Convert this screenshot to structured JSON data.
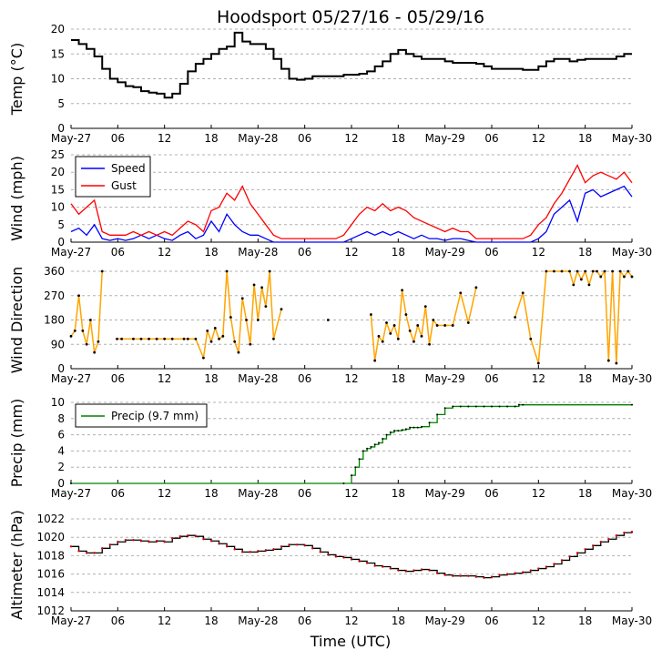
{
  "figure": {
    "title": "Hoodsport 05/27/16 - 05/29/16",
    "xlabel": "Time (UTC)"
  },
  "colors": {
    "temp": "#000000",
    "speed": "#0000ff",
    "gust": "#ff0000",
    "direction": "#ffa500",
    "precip": "#008000",
    "altimeter": "#000000",
    "altimeter_marker": "#cc0000",
    "grid": "#b0b0b0"
  },
  "chart_data": [
    {
      "type": "line",
      "id": "temp",
      "ylabel": "Temp (°C)",
      "ylim": [
        0,
        20
      ],
      "yticks": [
        "0",
        "5",
        "10",
        "15",
        "20"
      ],
      "xlim_hours": [
        0,
        72
      ],
      "xticks": [
        "May-27",
        "06",
        "12",
        "18",
        "May-28",
        "06",
        "12",
        "18",
        "May-29",
        "06",
        "12",
        "18",
        "May-30"
      ],
      "series": [
        {
          "name": "Temp",
          "x": [
            0,
            1,
            2,
            3,
            4,
            5,
            6,
            7,
            8,
            9,
            10,
            11,
            12,
            13,
            14,
            15,
            16,
            17,
            18,
            19,
            20,
            21,
            22,
            23,
            24,
            25,
            26,
            27,
            28,
            29,
            30,
            31,
            32,
            33,
            34,
            35,
            36,
            37,
            38,
            39,
            40,
            41,
            42,
            43,
            44,
            45,
            46,
            47,
            48,
            49,
            50,
            51,
            52,
            53,
            54,
            55,
            56,
            57,
            58,
            59,
            60,
            61,
            62,
            63,
            64,
            65,
            66,
            67,
            68,
            69,
            70,
            71,
            72
          ],
          "y": [
            17.8,
            17,
            16,
            14.5,
            12,
            10,
            9.3,
            8.5,
            8.3,
            7.5,
            7.2,
            7,
            6.2,
            7,
            9,
            11.5,
            13,
            14,
            15,
            16,
            16.5,
            19.3,
            17.5,
            17,
            17,
            16,
            14,
            12,
            10,
            9.8,
            10,
            10.5,
            10.5,
            10.5,
            10.5,
            10.8,
            10.8,
            11,
            11.5,
            12.5,
            13.5,
            15,
            15.8,
            15,
            14.5,
            14,
            14,
            14,
            13.5,
            13.2,
            13.2,
            13.2,
            13,
            12.5,
            12,
            12,
            12,
            12,
            11.8,
            11.8,
            12.5,
            13.5,
            14,
            14,
            13.5,
            13.8,
            14,
            14,
            14,
            14,
            14.5,
            15,
            15
          ]
        }
      ]
    },
    {
      "type": "line",
      "id": "wind",
      "ylabel": "Wind (mph)",
      "ylim": [
        0,
        25
      ],
      "yticks": [
        "0",
        "5",
        "10",
        "15",
        "20",
        "25"
      ],
      "xticks": [
        "May-27",
        "06",
        "12",
        "18",
        "May-28",
        "06",
        "12",
        "18",
        "May-29",
        "06",
        "12",
        "18",
        "May-30"
      ],
      "legend": [
        "Speed",
        "Gust"
      ],
      "series": [
        {
          "name": "Speed",
          "x": [
            0,
            1,
            2,
            3,
            4,
            5,
            6,
            7,
            8,
            9,
            10,
            11,
            12,
            13,
            14,
            15,
            16,
            17,
            18,
            19,
            20,
            21,
            22,
            23,
            24,
            25,
            26,
            27,
            28,
            29,
            30,
            31,
            32,
            33,
            34,
            35,
            36,
            37,
            38,
            39,
            40,
            41,
            42,
            43,
            44,
            45,
            46,
            47,
            48,
            49,
            50,
            51,
            52,
            53,
            54,
            55,
            56,
            57,
            58,
            59,
            60,
            61,
            62,
            63,
            64,
            65,
            66,
            67,
            68,
            69,
            70,
            71,
            72
          ],
          "y": [
            3,
            4,
            2,
            5,
            1,
            0.5,
            1,
            0.5,
            1,
            2,
            1,
            2,
            1,
            0.5,
            2,
            3,
            1,
            2,
            6,
            3,
            8,
            5,
            3,
            2,
            2,
            1,
            0,
            0,
            0,
            0,
            0,
            0,
            0,
            0,
            0,
            0,
            1,
            2,
            3,
            2,
            3,
            2,
            3,
            2,
            1,
            2,
            1,
            1,
            0.5,
            1,
            1,
            0.5,
            0,
            0,
            0,
            0,
            0,
            0,
            0,
            0,
            1,
            3,
            8,
            10,
            12,
            6,
            14,
            15,
            13,
            14,
            15,
            16,
            13
          ]
        },
        {
          "name": "Gust",
          "x": [
            0,
            1,
            2,
            3,
            4,
            5,
            6,
            7,
            8,
            9,
            10,
            11,
            12,
            13,
            14,
            15,
            16,
            17,
            18,
            19,
            20,
            21,
            22,
            23,
            24,
            25,
            26,
            27,
            28,
            29,
            30,
            31,
            32,
            33,
            34,
            35,
            36,
            37,
            38,
            39,
            40,
            41,
            42,
            43,
            44,
            45,
            46,
            47,
            48,
            49,
            50,
            51,
            52,
            53,
            54,
            55,
            56,
            57,
            58,
            59,
            60,
            61,
            62,
            63,
            64,
            65,
            66,
            67,
            68,
            69,
            70,
            71,
            72
          ],
          "y": [
            11,
            8,
            10,
            12,
            3,
            2,
            2,
            2,
            3,
            2,
            3,
            2,
            3,
            2,
            4,
            6,
            5,
            3,
            9,
            10,
            14,
            12,
            16,
            11,
            8,
            5,
            2,
            1,
            1,
            1,
            1,
            1,
            1,
            1,
            1,
            2,
            5,
            8,
            10,
            9,
            11,
            9,
            10,
            9,
            7,
            6,
            5,
            4,
            3,
            4,
            3,
            3,
            1,
            1,
            1,
            1,
            1,
            1,
            1,
            2,
            5,
            7,
            11,
            14,
            18,
            22,
            17,
            19,
            20,
            19,
            18,
            20,
            17
          ]
        }
      ]
    },
    {
      "type": "scatter",
      "id": "direction",
      "ylabel": "Wind Direction",
      "ylim": [
        0,
        360
      ],
      "yticks": [
        "0",
        "90",
        "180",
        "270",
        "360"
      ],
      "xticks": [
        "May-27",
        "06",
        "12",
        "18",
        "May-28",
        "06",
        "12",
        "18",
        "May-29",
        "06",
        "12",
        "18",
        "May-30"
      ],
      "series": [
        {
          "name": "Direction",
          "x": [
            0,
            0.5,
            1,
            1.5,
            2,
            2.5,
            3,
            3.5,
            4,
            5.9,
            6.5,
            8,
            9,
            10,
            11,
            12,
            13,
            14.5,
            15,
            16,
            17,
            17.5,
            18,
            18.5,
            19,
            19.5,
            20,
            20.5,
            21,
            21.5,
            22,
            22.5,
            23,
            23.5,
            24,
            24.5,
            25,
            25.5,
            26,
            27,
            33,
            38.5,
            39,
            39.5,
            40,
            40.5,
            41,
            41.5,
            42,
            42.5,
            43,
            43.5,
            44,
            44.5,
            45,
            45.5,
            46,
            46.5,
            47,
            48,
            49,
            50,
            51,
            52,
            57,
            58,
            59,
            60,
            61,
            62,
            63,
            64,
            64.5,
            65,
            65.5,
            66,
            66.5,
            67,
            67.5,
            68,
            68.5,
            69,
            69.5,
            70,
            70.5,
            71,
            71.5,
            72
          ],
          "y": [
            120,
            140,
            270,
            140,
            90,
            180,
            60,
            100,
            360,
            110,
            110,
            110,
            110,
            110,
            110,
            110,
            110,
            110,
            110,
            110,
            40,
            140,
            100,
            150,
            110,
            120,
            360,
            190,
            100,
            60,
            260,
            180,
            90,
            310,
            180,
            300,
            230,
            360,
            110,
            220,
            180,
            200,
            30,
            120,
            100,
            170,
            130,
            160,
            110,
            290,
            200,
            140,
            100,
            160,
            120,
            230,
            90,
            180,
            160,
            160,
            160,
            280,
            170,
            300,
            190,
            280,
            110,
            20,
            360,
            360,
            360,
            360,
            310,
            360,
            330,
            360,
            310,
            360,
            360,
            340,
            360,
            30,
            360,
            20,
            360,
            340,
            360,
            340
          ]
        }
      ]
    },
    {
      "type": "line",
      "id": "precip",
      "ylabel": "Precip (mm)",
      "ylim": [
        0,
        10
      ],
      "yticks": [
        "0",
        "2",
        "4",
        "6",
        "8",
        "10"
      ],
      "xticks": [
        "May-27",
        "06",
        "12",
        "18",
        "May-28",
        "06",
        "12",
        "18",
        "May-29",
        "06",
        "12",
        "18",
        "May-30"
      ],
      "legend": [
        "Precip (9.7 mm)"
      ],
      "series": [
        {
          "name": "Precip (9.7 mm)",
          "x": [
            0,
            35,
            36,
            36.5,
            37,
            37.5,
            38,
            38.5,
            39,
            39.5,
            40,
            40.5,
            41,
            41.5,
            42,
            42.5,
            43,
            43.5,
            44,
            44.5,
            45,
            46,
            47,
            48,
            49,
            50,
            51,
            52,
            53,
            54,
            55,
            56,
            57,
            57.5,
            58,
            72
          ],
          "y": [
            0,
            0,
            1,
            2,
            3,
            4,
            4.3,
            4.5,
            4.8,
            5,
            5.5,
            6,
            6.3,
            6.5,
            6.5,
            6.6,
            6.7,
            6.9,
            6.9,
            6.9,
            7,
            7.5,
            8.5,
            9.3,
            9.5,
            9.5,
            9.5,
            9.5,
            9.5,
            9.5,
            9.5,
            9.5,
            9.5,
            9.7,
            9.7,
            9.7
          ]
        }
      ]
    },
    {
      "type": "line",
      "id": "altimeter",
      "ylabel": "Altimeter (hPa)",
      "ylim": [
        1012,
        1022
      ],
      "yticks": [
        "1012",
        "1014",
        "1016",
        "1018",
        "1020",
        "1022"
      ],
      "xticks": [
        "May-27",
        "06",
        "12",
        "18",
        "May-28",
        "06",
        "12",
        "18",
        "May-29",
        "06",
        "12",
        "18",
        "May-30"
      ],
      "series": [
        {
          "name": "Altimeter",
          "x": [
            0,
            1,
            2,
            3,
            4,
            5,
            6,
            7,
            8,
            9,
            10,
            11,
            12,
            13,
            14,
            15,
            16,
            17,
            18,
            19,
            20,
            21,
            22,
            23,
            24,
            25,
            26,
            27,
            28,
            29,
            30,
            31,
            32,
            33,
            34,
            35,
            36,
            37,
            38,
            39,
            40,
            41,
            42,
            43,
            44,
            45,
            46,
            47,
            48,
            49,
            50,
            51,
            52,
            53,
            54,
            55,
            56,
            57,
            58,
            59,
            60,
            61,
            62,
            63,
            64,
            65,
            66,
            67,
            68,
            69,
            70,
            71,
            72
          ],
          "y": [
            1019,
            1018.5,
            1018.3,
            1018.3,
            1018.8,
            1019.2,
            1019.5,
            1019.7,
            1019.7,
            1019.6,
            1019.5,
            1019.6,
            1019.5,
            1019.9,
            1020.1,
            1020.2,
            1020.1,
            1019.8,
            1019.6,
            1019.3,
            1019,
            1018.7,
            1018.4,
            1018.4,
            1018.5,
            1018.6,
            1018.7,
            1019,
            1019.2,
            1019.2,
            1019.1,
            1018.8,
            1018.4,
            1018.1,
            1017.9,
            1017.8,
            1017.6,
            1017.4,
            1017.2,
            1016.9,
            1016.8,
            1016.6,
            1016.4,
            1016.3,
            1016.4,
            1016.5,
            1016.4,
            1016.1,
            1015.9,
            1015.8,
            1015.8,
            1015.8,
            1015.7,
            1015.6,
            1015.7,
            1015.9,
            1016,
            1016.1,
            1016.2,
            1016.4,
            1016.6,
            1016.8,
            1017.1,
            1017.5,
            1017.9,
            1018.3,
            1018.7,
            1019.1,
            1019.5,
            1019.8,
            1020.2,
            1020.5,
            1020.6
          ]
        }
      ]
    }
  ]
}
